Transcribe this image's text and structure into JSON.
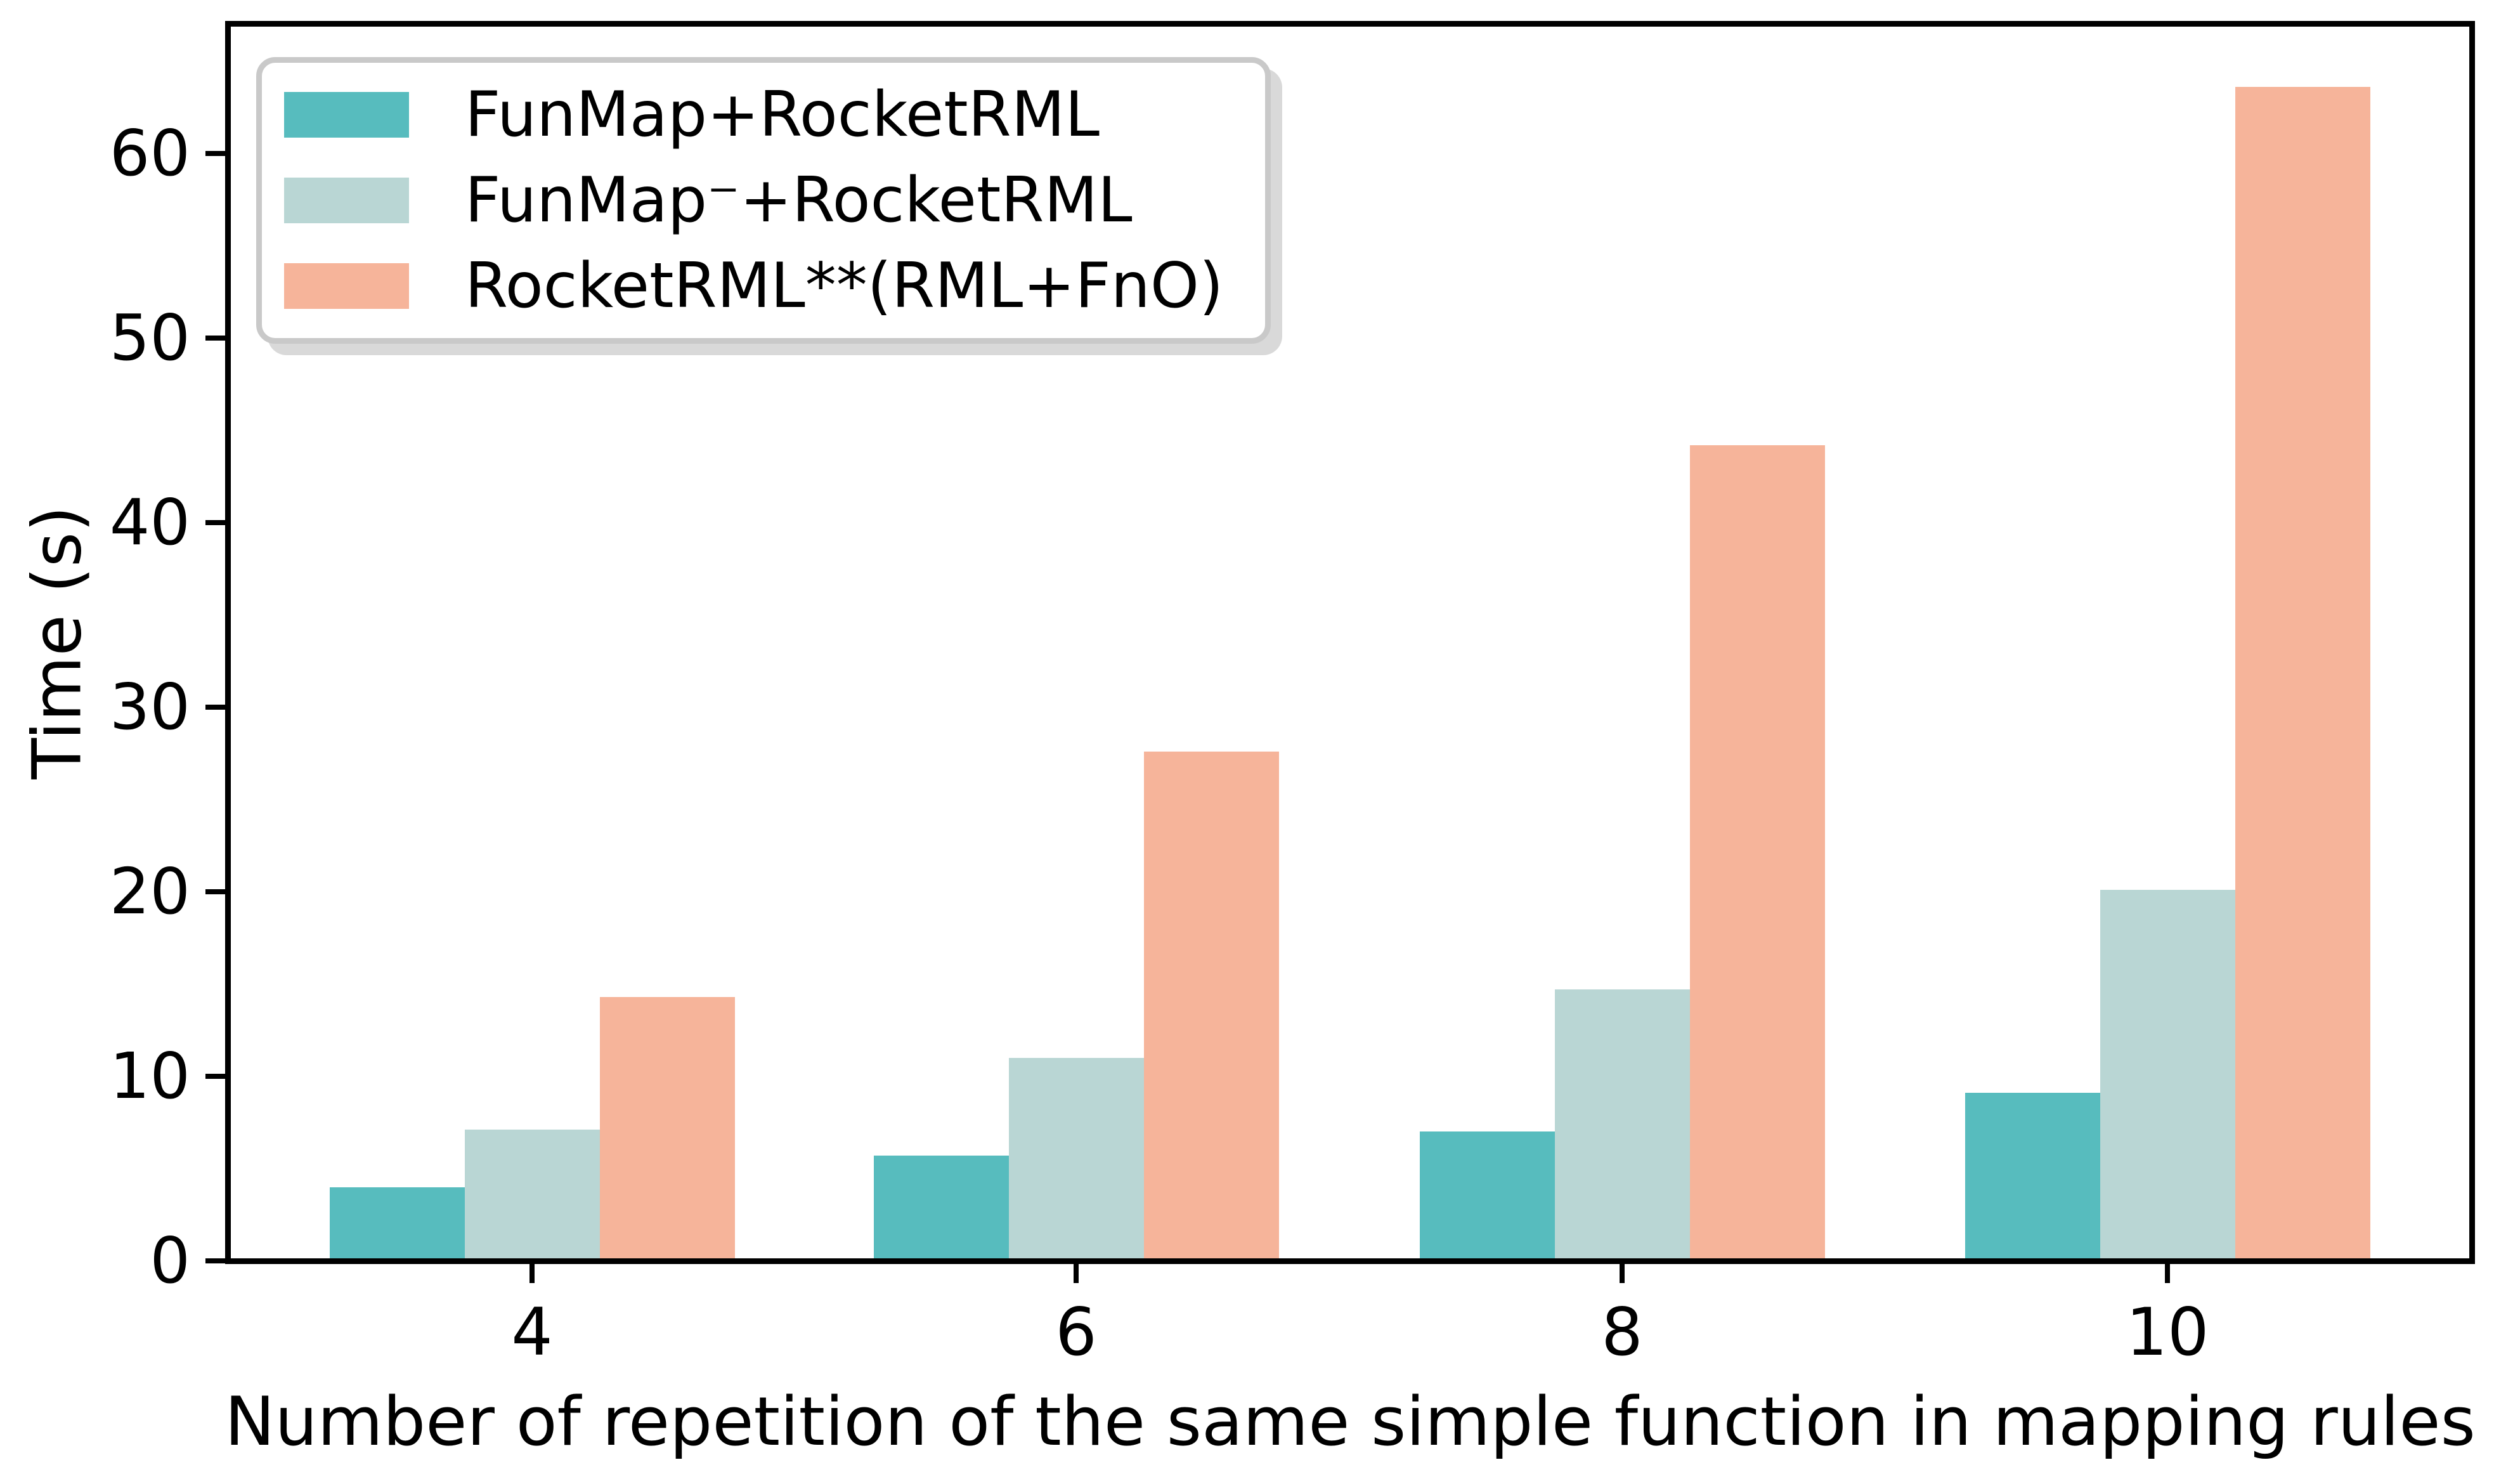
{
  "figure": {
    "background": "#ffffff",
    "axis_color": "#000000"
  },
  "chart_data": {
    "type": "bar",
    "title": "",
    "xlabel": "Number of repetition of the same simple function in mapping rules",
    "ylabel": "Time (s)",
    "categories": [
      "4",
      "6",
      "8",
      "10"
    ],
    "series": [
      {
        "name": "FunMap+RocketRML",
        "color": "#57bcbe",
        "values": [
          4.0,
          5.7,
          7.0,
          9.1
        ]
      },
      {
        "name": "FunMap⁻+RocketRML",
        "color": "#b9d6d4",
        "values": [
          7.1,
          11.0,
          14.7,
          20.1
        ]
      },
      {
        "name": "RocketRML**(RML+FnO)",
        "color": "#f6b49a",
        "values": [
          14.3,
          27.6,
          44.2,
          63.6
        ]
      }
    ],
    "yticks": [
      0,
      10,
      20,
      30,
      40,
      50,
      60
    ],
    "ylim": [
      0,
      67
    ],
    "grid": false,
    "legend_position": "upper left"
  }
}
